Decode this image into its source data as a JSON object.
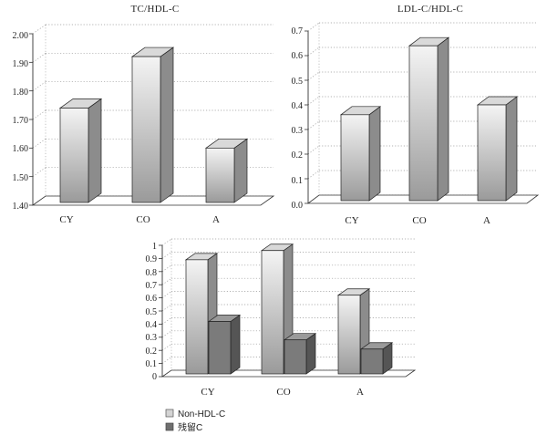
{
  "colors": {
    "light_bar_front_top": "#f4f4f4",
    "light_bar_front_bottom": "#9a9a9a",
    "light_bar_side": "#8c8c8c",
    "light_bar_top": "#d9d9d9",
    "dark_bar_front": "#7b7b7b",
    "dark_bar_side": "#555555",
    "dark_bar_top": "#9a9a9a",
    "grid": "#9a9a9a",
    "axis": "#333333"
  },
  "chart_data": [
    {
      "type": "bar",
      "title": "TC/HDL-C",
      "categories": [
        "CY",
        "CO",
        "A"
      ],
      "series": [
        {
          "name": "TC/HDL-C",
          "values": [
            1.74,
            1.92,
            1.6
          ]
        }
      ],
      "ylim": [
        1.4,
        2.0
      ],
      "yticks": [
        "1.40",
        "1.50",
        "1.60",
        "1.70",
        "1.80",
        "1.90",
        "2.00"
      ],
      "grid": true
    },
    {
      "type": "bar",
      "title": "LDL-C/HDL-C",
      "categories": [
        "CY",
        "CO",
        "A"
      ],
      "series": [
        {
          "name": "LDL-C/HDL-C",
          "values": [
            0.36,
            0.64,
            0.4
          ]
        }
      ],
      "ylim": [
        0,
        0.7
      ],
      "yticks": [
        "0.0",
        "0.1",
        "0.2",
        "0.3",
        "0.4",
        "0.5",
        "0.6",
        "0.7"
      ],
      "grid": true
    },
    {
      "type": "bar",
      "title": "",
      "categories": [
        "CY",
        "CO",
        "A"
      ],
      "series": [
        {
          "name": "Non-HDL-C",
          "values": [
            0.89,
            0.96,
            0.62
          ]
        },
        {
          "name": "残留C",
          "values": [
            0.42,
            0.28,
            0.21
          ]
        }
      ],
      "ylim": [
        0,
        1
      ],
      "yticks": [
        "0",
        "0.1",
        "0.2",
        "0.3",
        "0.4",
        "0.5",
        "0.6",
        "0.7",
        "0.8",
        "0.9",
        "1"
      ],
      "grid": true,
      "legend": "bottom-left"
    }
  ]
}
